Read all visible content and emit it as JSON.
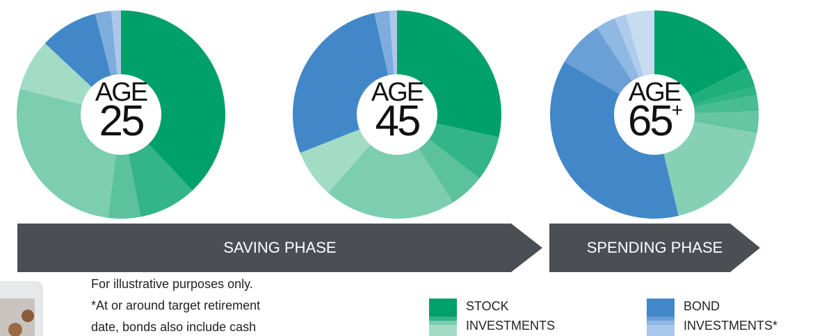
{
  "chart_data": [
    {
      "type": "pie",
      "center_label": "AGE",
      "center_value": "25",
      "values": [
        38,
        9,
        5,
        27,
        8,
        9,
        2.5,
        1.5
      ],
      "colors": [
        "#00a06a",
        "#33b489",
        "#5cc29e",
        "#7dcdb1",
        "#a3dcc5",
        "#4288c9",
        "#7eacdc",
        "#a9c8ea"
      ]
    },
    {
      "type": "pie",
      "center_label": "AGE",
      "center_value": "45",
      "values": [
        28.5,
        7,
        5.5,
        20.5,
        7.5,
        27.5,
        2.3,
        1.2
      ],
      "colors": [
        "#00a06a",
        "#33b489",
        "#5cc29e",
        "#7dcdb1",
        "#a3dcc5",
        "#4288c9",
        "#7eacdc",
        "#a9c8ea"
      ]
    },
    {
      "type": "pie",
      "center_label": "AGE",
      "center_value": "65",
      "center_value_sup": "+",
      "values": [
        17.5,
        3.2,
        1.3,
        2.5,
        3.4,
        18.4,
        37.2,
        7.25,
        3.1,
        1.8,
        4.4
      ],
      "colors": [
        "#00a06a",
        "#1fae7c",
        "#2fb486",
        "#48bc92",
        "#66c5a3",
        "#86d1b6",
        "#4288c9",
        "#6aa0d6",
        "#8fb8e2",
        "#aecbec",
        "#c6dcf1"
      ]
    }
  ],
  "phases": [
    "SAVING PHASE",
    "SPENDING PHASE"
  ],
  "note": [
    "For illustrative purposes only.",
    "*At or around target retirement",
    "date, bonds also include cash"
  ],
  "legend": [
    {
      "lines": [
        "STOCK",
        "INVESTMENTS"
      ],
      "colors": [
        "#00a06a",
        "#33b489",
        "#7dcdb1",
        "#a3dcc5"
      ]
    },
    {
      "lines": [
        "BOND",
        "INVESTMENTS*"
      ],
      "colors": [
        "#4288c9",
        "#6aa0d6",
        "#8fb8e2",
        "#a9c8ea"
      ]
    }
  ]
}
